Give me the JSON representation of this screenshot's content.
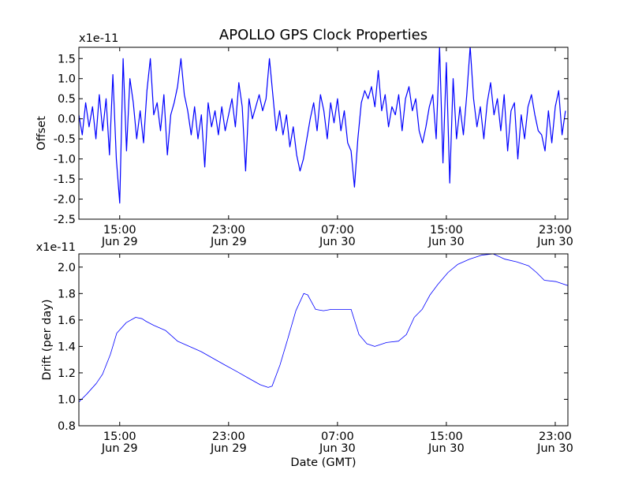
{
  "chart_data": [
    {
      "type": "line",
      "title": "APOLLO GPS Clock Properties",
      "ylabel": "Offset",
      "xlabel": "",
      "offset_text": "x1e-11",
      "x_units": "hours since Jun 29 00:00 GMT",
      "xlim": [
        12,
        47.93
      ],
      "ylim": [
        -2.5,
        1.78
      ],
      "yticks": [
        -2.5,
        -2.0,
        -1.5,
        -1.0,
        -0.5,
        0.0,
        0.5,
        1.0,
        1.5
      ],
      "ytick_labels": [
        "-2.5",
        "-2.0",
        "-1.5",
        "-1.0",
        "-0.5",
        "0.0",
        "0.5",
        "1.0",
        "1.5"
      ],
      "xticks": [
        15,
        23,
        31,
        39,
        47
      ],
      "xtick_labels": [
        [
          "15:00",
          "Jun 29"
        ],
        [
          "23:00",
          "Jun 29"
        ],
        [
          "07:00",
          "Jun 30"
        ],
        [
          "15:00",
          "Jun 30"
        ],
        [
          "23:00",
          "Jun 30"
        ]
      ],
      "color": "#0000ff",
      "series": [
        {
          "name": "Offset",
          "x_start": 12,
          "x_step": 0.25,
          "values": [
            0.1,
            -0.4,
            0.4,
            -0.2,
            0.3,
            -0.5,
            0.6,
            -0.3,
            0.5,
            -0.9,
            1.1,
            -1.0,
            -2.1,
            1.5,
            -0.8,
            1.0,
            0.4,
            -0.5,
            0.2,
            -0.6,
            0.7,
            1.5,
            0.1,
            0.4,
            -0.3,
            0.6,
            -0.9,
            0.1,
            0.4,
            0.8,
            1.5,
            0.6,
            0.2,
            -0.4,
            0.3,
            -0.5,
            0.1,
            -1.2,
            0.4,
            -0.2,
            0.2,
            -0.4,
            0.3,
            -0.3,
            0.1,
            0.5,
            -0.2,
            0.9,
            0.3,
            -1.3,
            0.5,
            0.0,
            0.3,
            0.6,
            0.2,
            0.5,
            1.5,
            0.6,
            -0.3,
            0.2,
            -0.4,
            0.1,
            -0.7,
            -0.2,
            -0.9,
            -1.3,
            -1.0,
            -0.5,
            0.0,
            0.4,
            -0.3,
            0.6,
            0.2,
            -0.5,
            0.4,
            -0.1,
            0.5,
            -0.3,
            0.2,
            -0.6,
            -0.8,
            -1.7,
            -0.5,
            0.4,
            0.7,
            0.5,
            0.8,
            0.3,
            1.2,
            0.2,
            0.6,
            -0.2,
            0.3,
            0.1,
            0.6,
            -0.3,
            0.5,
            0.8,
            0.2,
            0.5,
            -0.3,
            -0.6,
            -0.2,
            0.3,
            0.6,
            -0.5,
            1.8,
            -1.1,
            1.4,
            -1.6,
            1.0,
            -0.5,
            0.3,
            -0.4,
            0.6,
            1.8,
            0.5,
            -0.2,
            0.3,
            -0.5,
            0.4,
            0.9,
            0.1,
            0.5,
            -0.3,
            0.6,
            -0.8,
            0.2,
            0.4,
            -1.0,
            0.1,
            -0.5,
            0.3,
            0.6,
            0.1,
            -0.3,
            -0.4,
            -0.8,
            0.2,
            -0.6,
            0.3,
            0.7,
            -0.4,
            0.2
          ]
        }
      ]
    },
    {
      "type": "line",
      "ylabel": "Drift (per day)",
      "xlabel": "Date (GMT)",
      "offset_text": "x1e-11",
      "x_units": "hours since Jun 29 00:00 GMT",
      "xlim": [
        12,
        47.93
      ],
      "ylim": [
        0.8,
        2.1
      ],
      "yticks": [
        0.8,
        1.0,
        1.2,
        1.4,
        1.6,
        1.8,
        2.0
      ],
      "ytick_labels": [
        "0.8",
        "1.0",
        "1.2",
        "1.4",
        "1.6",
        "1.8",
        "2.0"
      ],
      "xticks": [
        15,
        23,
        31,
        39,
        47
      ],
      "xtick_labels": [
        [
          "15:00",
          "Jun 29"
        ],
        [
          "23:00",
          "Jun 29"
        ],
        [
          "07:00",
          "Jun 30"
        ],
        [
          "15:00",
          "Jun 30"
        ],
        [
          "23:00",
          "Jun 30"
        ]
      ],
      "color": "#0000ff",
      "series": [
        {
          "name": "Drift",
          "x": [
            12,
            12.58,
            13.28,
            13.74,
            14.32,
            14.78,
            15.48,
            16.17,
            16.64,
            16.93,
            17.5,
            18.38,
            19.25,
            20.12,
            21.0,
            21.86,
            22.72,
            23.6,
            24.46,
            25.33,
            25.91,
            26.2,
            26.78,
            27.36,
            27.94,
            28.52,
            28.81,
            29.39,
            29.97,
            30.55,
            31.42,
            32.0,
            32.58,
            33.16,
            33.74,
            34.61,
            35.48,
            36.06,
            36.64,
            37.22,
            37.8,
            38.38,
            39.13,
            39.83,
            40.7,
            41.57,
            42.43,
            43.3,
            44.17,
            45.04,
            45.62,
            46.2,
            47.07,
            47.93
          ],
          "values": [
            0.98,
            1.04,
            1.12,
            1.19,
            1.34,
            1.5,
            1.58,
            1.62,
            1.61,
            1.59,
            1.56,
            1.52,
            1.44,
            1.4,
            1.36,
            1.31,
            1.26,
            1.21,
            1.16,
            1.11,
            1.09,
            1.1,
            1.26,
            1.46,
            1.67,
            1.8,
            1.79,
            1.68,
            1.67,
            1.68,
            1.68,
            1.68,
            1.49,
            1.42,
            1.4,
            1.43,
            1.44,
            1.49,
            1.62,
            1.68,
            1.79,
            1.87,
            1.96,
            2.02,
            2.06,
            2.09,
            2.1,
            2.06,
            2.04,
            2.01,
            1.96,
            1.9,
            1.89,
            1.86
          ]
        }
      ]
    }
  ]
}
